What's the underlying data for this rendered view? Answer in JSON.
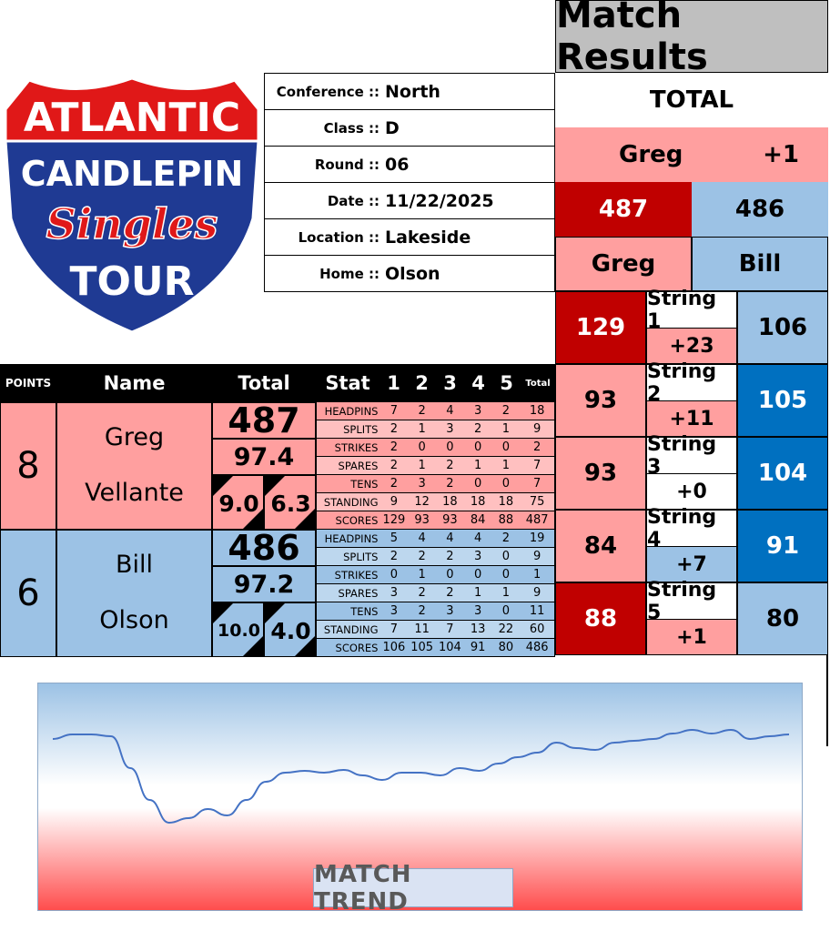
{
  "logo": {
    "line1": "ATLANTIC",
    "line2": "CANDLEPIN",
    "line3": "Singles",
    "line4": "TOUR"
  },
  "info": [
    {
      "label": "Conference ::",
      "value": "North"
    },
    {
      "label": "Class ::",
      "value": "D"
    },
    {
      "label": "Round ::",
      "value": "06"
    },
    {
      "label": "Date ::",
      "value": "11/22/2025"
    },
    {
      "label": "Location ::",
      "value": "Lakeside"
    },
    {
      "label": "Home ::",
      "value": "Olson"
    }
  ],
  "results": {
    "title": "Match Results",
    "total_label": "TOTAL",
    "leader": "Greg",
    "leader_margin": "+1",
    "score_a": "487",
    "score_b": "486",
    "name_a": "Greg",
    "name_b": "Bill",
    "strings": [
      {
        "label": "String 1",
        "a": "129",
        "b": "106",
        "diff": "+23"
      },
      {
        "label": "String 2",
        "a": "93",
        "b": "105",
        "diff": "+11"
      },
      {
        "label": "String 3",
        "a": "93",
        "b": "104",
        "diff": "+0"
      },
      {
        "label": "String 4",
        "a": "84",
        "b": "91",
        "diff": "+7"
      },
      {
        "label": "String 5",
        "a": "88",
        "b": "80",
        "diff": "+1"
      }
    ]
  },
  "colors": {
    "dark_red": "#c00000",
    "pink": "#ff9f9f",
    "light_blue": "#9cc2e5",
    "dark_blue": "#0070c0"
  },
  "table": {
    "headers": {
      "points": "POINTS",
      "name": "Name",
      "total": "Total",
      "stat": "Stat",
      "c1": "1",
      "c2": "2",
      "c3": "3",
      "c4": "4",
      "c5": "5",
      "ctotal": "Total"
    },
    "players": [
      {
        "points": "8",
        "first": "Greg",
        "last": "Vellante",
        "total": "487",
        "avg": "97.4",
        "left": "9.0",
        "right": "6.3",
        "stats": [
          [
            "HEADPINS",
            "7",
            "2",
            "4",
            "3",
            "2",
            "18"
          ],
          [
            "SPLITS",
            "2",
            "1",
            "3",
            "2",
            "1",
            "9"
          ],
          [
            "STRIKES",
            "2",
            "0",
            "0",
            "0",
            "0",
            "2"
          ],
          [
            "SPARES",
            "2",
            "1",
            "2",
            "1",
            "1",
            "7"
          ],
          [
            "TENS",
            "2",
            "3",
            "2",
            "0",
            "0",
            "7"
          ],
          [
            "STANDING",
            "9",
            "12",
            "18",
            "18",
            "18",
            "75"
          ],
          [
            "SCORES",
            "129",
            "93",
            "93",
            "84",
            "88",
            "487"
          ]
        ]
      },
      {
        "points": "6",
        "first": "Bill",
        "last": "Olson",
        "total": "486",
        "avg": "97.2",
        "left": "10.0",
        "right": "4.0",
        "stats": [
          [
            "HEADPINS",
            "5",
            "4",
            "4",
            "4",
            "2",
            "19"
          ],
          [
            "SPLITS",
            "2",
            "2",
            "2",
            "3",
            "0",
            "9"
          ],
          [
            "STRIKES",
            "0",
            "1",
            "0",
            "0",
            "0",
            "1"
          ],
          [
            "SPARES",
            "3",
            "2",
            "2",
            "1",
            "1",
            "9"
          ],
          [
            "TENS",
            "3",
            "2",
            "3",
            "3",
            "0",
            "11"
          ],
          [
            "STANDING",
            "7",
            "11",
            "7",
            "13",
            "22",
            "60"
          ],
          [
            "SCORES",
            "106",
            "105",
            "104",
            "91",
            "80",
            "486"
          ]
        ]
      }
    ]
  },
  "chart_data": {
    "type": "line",
    "title": "MATCH TREND",
    "grid": false,
    "values": [
      4.2,
      4.7,
      4.7,
      4.5,
      1,
      -2.5,
      -5,
      -4.5,
      -3.5,
      -4.2,
      -2.5,
      -0.5,
      0.5,
      0.7,
      0.5,
      0.8,
      0.2,
      -0.3,
      0.5,
      0.5,
      0.2,
      1,
      0.7,
      1.5,
      2.2,
      2.7,
      3.8,
      3.2,
      3,
      3.8,
      4,
      4.2,
      4.8,
      5.2,
      4.8,
      5.2,
      4.2,
      4.5,
      4.7
    ]
  }
}
